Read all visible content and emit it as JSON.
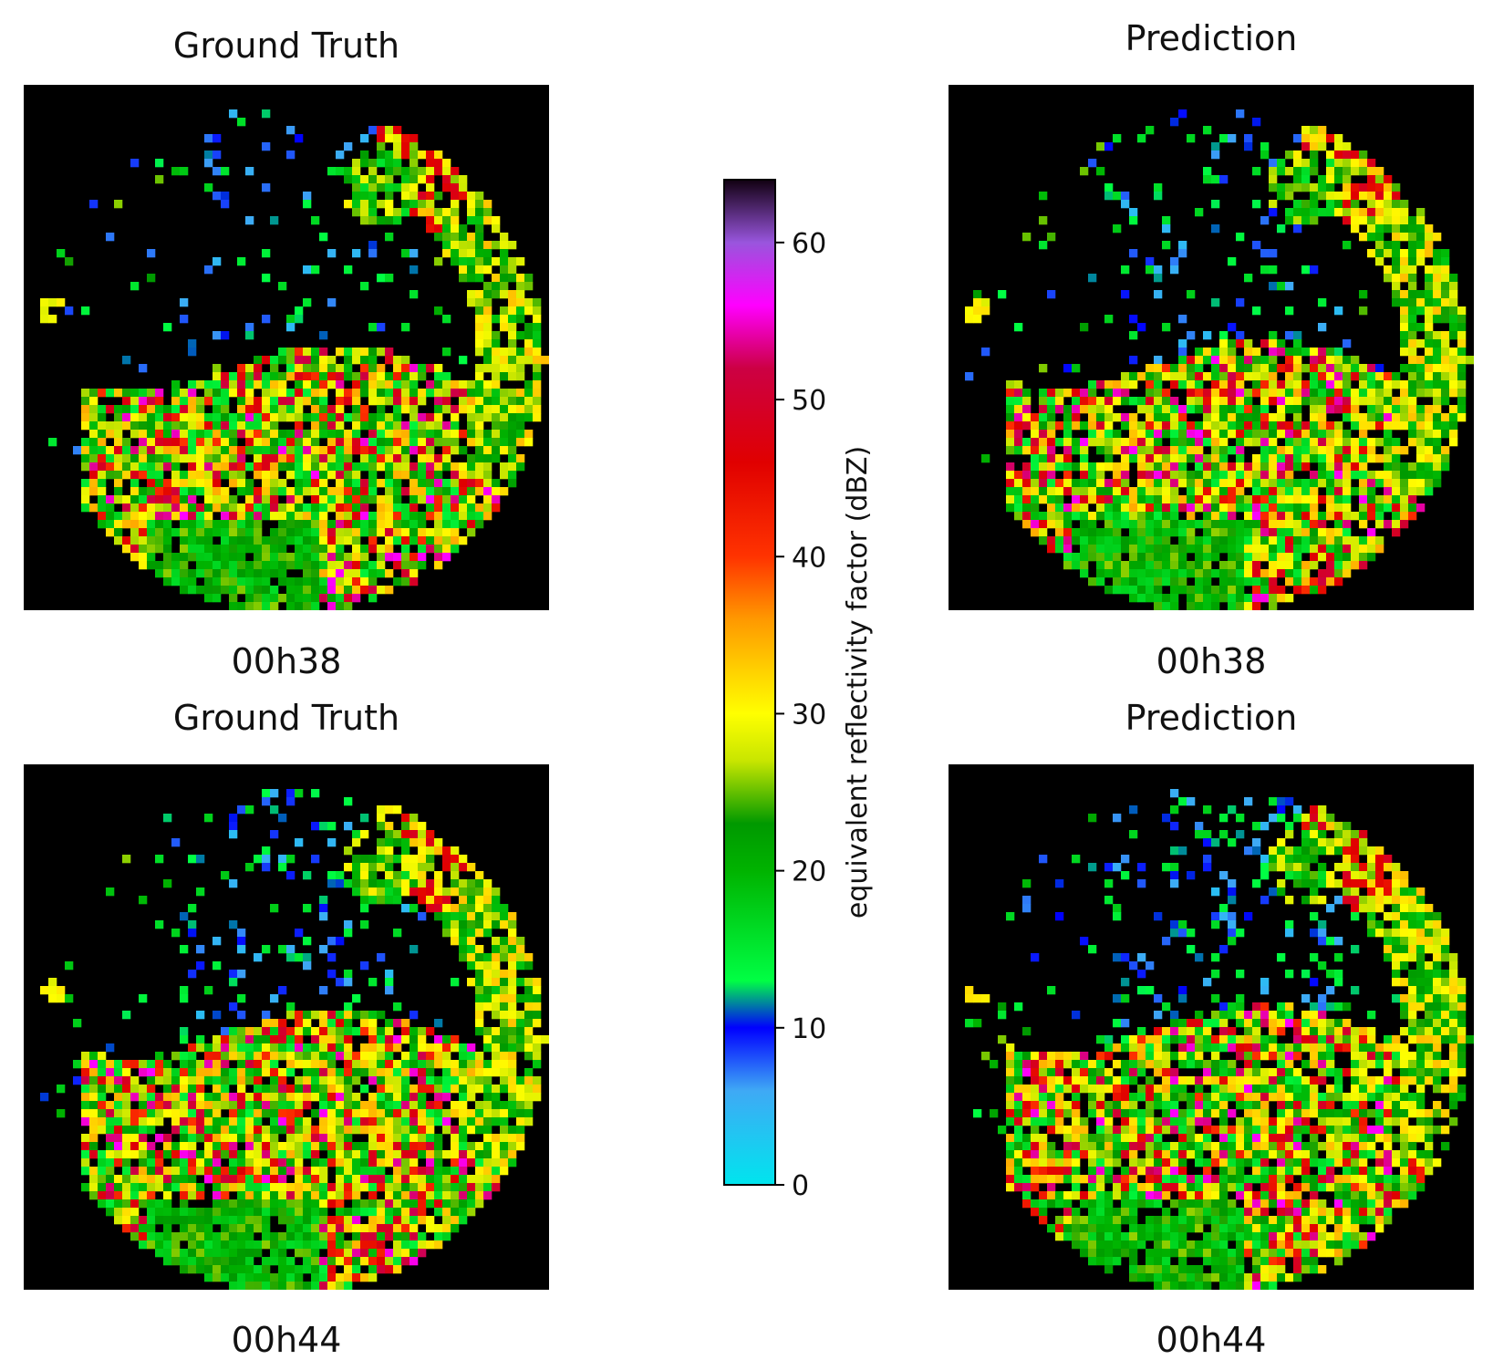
{
  "panels": [
    {
      "title": "Ground Truth",
      "time": "00h38"
    },
    {
      "title": "Prediction",
      "time": "00h38"
    },
    {
      "title": "Ground Truth",
      "time": "00h44"
    },
    {
      "title": "Prediction",
      "time": "00h44"
    }
  ],
  "colorbar": {
    "label": "equivalent reflectivity factor (dBZ)",
    "ticks": [
      "0",
      "10",
      "20",
      "30",
      "40",
      "50",
      "60"
    ],
    "tick_values": [
      0,
      10,
      20,
      30,
      40,
      50,
      60
    ],
    "range": [
      0,
      64
    ],
    "stops": [
      {
        "v": 0,
        "c": "#00e5ee"
      },
      {
        "v": 6,
        "c": "#3fa9f5"
      },
      {
        "v": 10,
        "c": "#0000ff"
      },
      {
        "v": 13,
        "c": "#00ff44"
      },
      {
        "v": 20,
        "c": "#00b300"
      },
      {
        "v": 23,
        "c": "#009900"
      },
      {
        "v": 27,
        "c": "#c8e600"
      },
      {
        "v": 30,
        "c": "#ffff00"
      },
      {
        "v": 36,
        "c": "#ff9900"
      },
      {
        "v": 40,
        "c": "#ff3300"
      },
      {
        "v": 46,
        "c": "#e00000"
      },
      {
        "v": 52,
        "c": "#cc0044"
      },
      {
        "v": 56,
        "c": "#ff00ff"
      },
      {
        "v": 60,
        "c": "#9955dd"
      },
      {
        "v": 64,
        "c": "#110011"
      }
    ]
  },
  "chart_data": {
    "type": "heatmap",
    "description_axes": "4 radar reflectivity maps (64x64 grid, black = no echo) with shared colorbar",
    "panels": [
      {
        "title": "Ground Truth",
        "time": "00h38",
        "seed": 11,
        "growth": 0.0
      },
      {
        "title": "Prediction",
        "time": "00h38",
        "seed": 23,
        "growth": 0.02
      },
      {
        "title": "Ground Truth",
        "time": "00h44",
        "seed": 37,
        "growth": 0.06
      },
      {
        "title": "Prediction",
        "time": "00h44",
        "seed": 53,
        "growth": 0.08
      }
    ],
    "colorbar_range_dBZ": [
      0,
      64
    ]
  }
}
